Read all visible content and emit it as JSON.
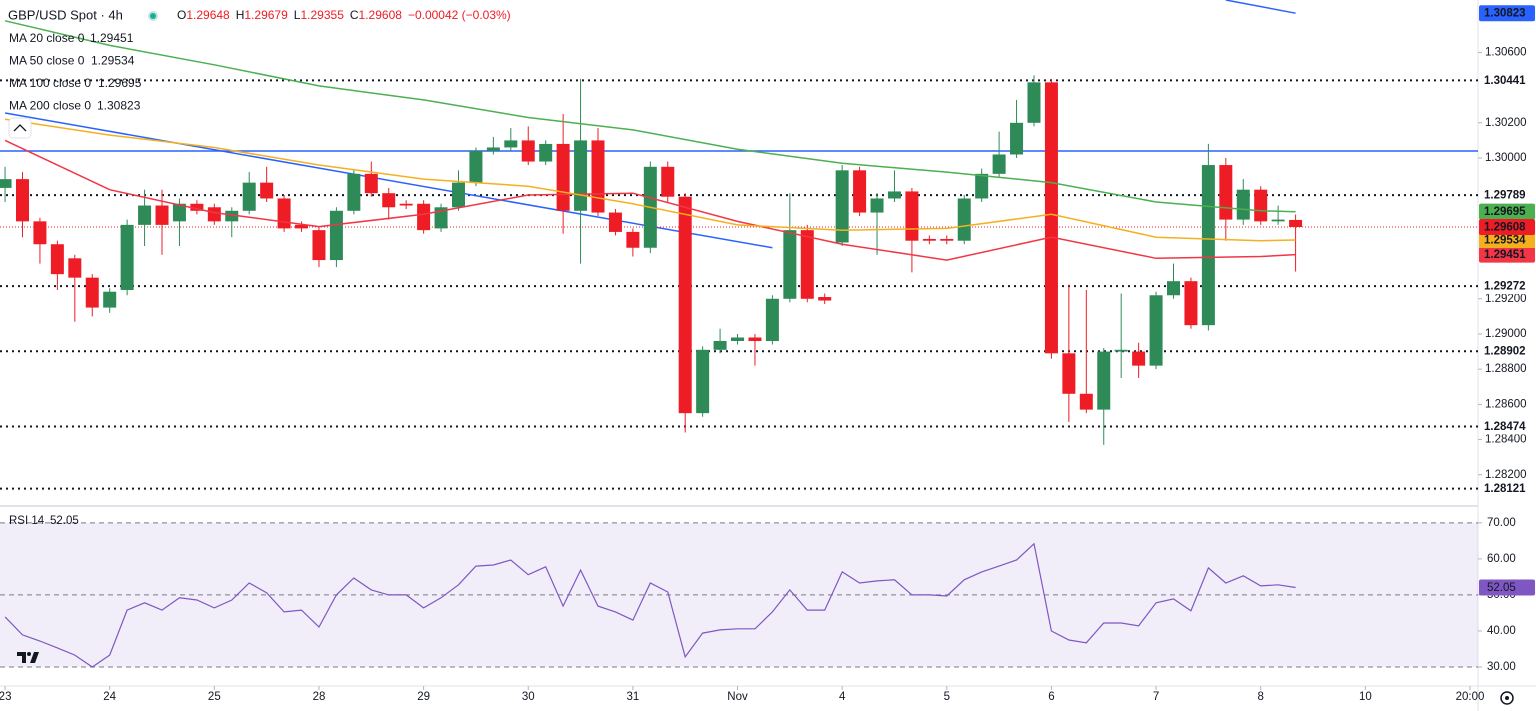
{
  "chart_data": {
    "type": "candlestick",
    "symbol": "GBP/USD Spot · 4h",
    "ohlc": [
      {
        "k": "O",
        "v": "1.29648"
      },
      {
        "k": "H",
        "v": "1.29679"
      },
      {
        "k": "L",
        "v": "1.29355"
      },
      {
        "k": "C",
        "v": "1.29608"
      }
    ],
    "change": "−0.00042 (−0.03%)",
    "up_color": "#2e8b57",
    "down_color": "#ee1c25",
    "xlim": [
      -0.29,
      84.46
    ],
    "xticks": [
      {
        "value": 0,
        "label": "23"
      },
      {
        "value": 6,
        "label": "24"
      },
      {
        "value": 12,
        "label": "25"
      },
      {
        "value": 18,
        "label": "28"
      },
      {
        "value": 24,
        "label": "29"
      },
      {
        "value": 30,
        "label": "30"
      },
      {
        "value": 36,
        "label": "31"
      },
      {
        "value": 42,
        "label": "Nov"
      },
      {
        "value": 48,
        "label": "4"
      },
      {
        "value": 54,
        "label": "5"
      },
      {
        "value": 60,
        "label": "6"
      },
      {
        "value": 66,
        "label": "7"
      },
      {
        "value": 72,
        "label": "8"
      },
      {
        "value": 78,
        "label": "10"
      },
      {
        "value": 84,
        "label": "20:00"
      }
    ],
    "ylim": [
      1.28028,
      1.30898
    ],
    "yticks": [
      {
        "value": 1.306,
        "label": "1.30600"
      },
      {
        "value": 1.302,
        "label": "1.30200"
      },
      {
        "value": 1.3,
        "label": "1.30000"
      },
      {
        "value": 1.292,
        "label": "1.29200"
      },
      {
        "value": 1.29,
        "label": "1.29000"
      },
      {
        "value": 1.288,
        "label": "1.28800"
      },
      {
        "value": 1.286,
        "label": "1.28600"
      },
      {
        "value": 1.284,
        "label": "1.28400"
      },
      {
        "value": 1.282,
        "label": "1.28200"
      }
    ],
    "open": [
      1.2983,
      1.2988,
      1.2964,
      1.2951,
      1.2943,
      1.2932,
      1.2915,
      1.2925,
      1.2962,
      1.2973,
      1.2964,
      1.2974,
      1.2972,
      1.2964,
      1.297,
      1.2986,
      1.2977,
      1.2962,
      1.2959,
      1.2942,
      1.297,
      1.2991,
      1.298,
      1.2974,
      1.2974,
      1.296,
      1.2972,
      1.2986,
      1.3004,
      1.3006,
      1.301,
      1.2998,
      1.3008,
      1.297,
      1.301,
      1.2969,
      1.2958,
      1.2949,
      1.2995,
      1.2978,
      1.2855,
      1.2891,
      1.2896,
      1.2898,
      1.2896,
      1.292,
      1.2959,
      1.2921,
      1.2952,
      1.2993,
      1.2969,
      1.2977,
      1.2981,
      1.2954,
      1.2954,
      1.2953,
      1.2977,
      1.2991,
      1.3002,
      1.302,
      1.3043,
      1.2889,
      1.2866,
      1.2857,
      1.289,
      1.289,
      1.2882,
      1.2922,
      1.293,
      1.2905,
      1.2996,
      1.2965,
      1.2982,
      1.2964,
      1.29648
    ],
    "high": [
      1.2995,
      1.2992,
      1.2966,
      1.2953,
      1.2945,
      1.2934,
      1.2926,
      1.2965,
      1.2982,
      1.2982,
      1.2977,
      1.2976,
      1.2974,
      1.2972,
      1.2992,
      1.2995,
      1.2979,
      1.2964,
      1.2961,
      1.2972,
      1.2993,
      1.2998,
      1.2983,
      1.2976,
      1.2976,
      1.2974,
      1.2993,
      1.3006,
      1.3012,
      1.3017,
      1.3018,
      1.301,
      1.3025,
      1.3045,
      1.3017,
      1.2971,
      1.296,
      1.2998,
      1.2998,
      1.298,
      1.2893,
      1.2903,
      1.29,
      1.29,
      1.2922,
      1.298,
      1.2962,
      1.2923,
      1.2996,
      1.2995,
      1.298,
      1.2993,
      1.2983,
      1.2956,
      1.2956,
      1.2979,
      1.2994,
      1.3015,
      1.3033,
      1.3047,
      1.3045,
      1.2928,
      1.2925,
      1.2892,
      1.2923,
      1.2895,
      1.2924,
      1.294,
      1.2932,
      1.3008,
      1.3,
      1.2988,
      1.2984,
      1.2973,
      1.29679
    ],
    "low": [
      1.2975,
      1.2955,
      1.294,
      1.2925,
      1.2907,
      1.291,
      1.2912,
      1.2922,
      1.295,
      1.2945,
      1.295,
      1.2968,
      1.2962,
      1.2955,
      1.2968,
      1.2975,
      1.2958,
      1.2958,
      1.2938,
      1.2938,
      1.2968,
      1.2978,
      1.2965,
      1.2971,
      1.2957,
      1.2958,
      1.297,
      1.2984,
      1.3002,
      1.3004,
      1.2996,
      1.2996,
      1.2957,
      1.294,
      1.2967,
      1.2956,
      1.2944,
      1.2946,
      1.2975,
      1.2844,
      1.2853,
      1.2889,
      1.2894,
      1.2882,
      1.2894,
      1.2918,
      1.2918,
      1.2917,
      1.295,
      1.2967,
      1.2945,
      1.2975,
      1.2935,
      1.2951,
      1.2951,
      1.2951,
      1.2975,
      1.2989,
      1.3,
      1.3018,
      1.2886,
      1.285,
      1.2855,
      1.2837,
      1.2875,
      1.2875,
      1.288,
      1.292,
      1.2903,
      1.2902,
      1.2953,
      1.2962,
      1.2962,
      1.2962,
      1.29355
    ],
    "close": [
      1.2988,
      1.2964,
      1.2951,
      1.2934,
      1.2932,
      1.2915,
      1.2924,
      1.2962,
      1.2973,
      1.2962,
      1.2974,
      1.297,
      1.2964,
      1.297,
      1.2986,
      1.2977,
      1.296,
      1.296,
      1.2942,
      1.297,
      1.2991,
      1.298,
      1.2972,
      1.2973,
      1.2959,
      1.2972,
      1.2986,
      1.3004,
      1.3006,
      1.301,
      1.2998,
      1.3008,
      1.297,
      1.301,
      1.2969,
      1.2958,
      1.2949,
      1.2995,
      1.2978,
      1.2855,
      1.2891,
      1.2896,
      1.2898,
      1.2896,
      1.292,
      1.2959,
      1.292,
      1.2919,
      1.2993,
      1.2969,
      1.2977,
      1.2981,
      1.2953,
      1.2953,
      1.2953,
      1.2977,
      1.2991,
      1.3002,
      1.302,
      1.3043,
      1.2889,
      1.2866,
      1.2857,
      1.289,
      1.2891,
      1.2882,
      1.2922,
      1.293,
      1.2905,
      1.2996,
      1.2965,
      1.2982,
      1.2964,
      1.2965,
      1.29608
    ],
    "series": [
      {
        "name": "MA 20 close 0",
        "color": "#f23645",
        "x": [
          0,
          6,
          12,
          18,
          24,
          30,
          36,
          42,
          48,
          54,
          60,
          66,
          72,
          74
        ],
        "values": [
          1.301,
          1.2982,
          1.2969,
          1.2961,
          1.2968,
          1.2979,
          1.298,
          1.2964,
          1.2951,
          1.2942,
          1.2955,
          1.2943,
          1.2944,
          1.29451
        ]
      },
      {
        "name": "MA 50 close 0",
        "color": "#f5b01f",
        "x": [
          0,
          6,
          12,
          18,
          24,
          30,
          36,
          42,
          48,
          54,
          60,
          66,
          72,
          74
        ],
        "values": [
          1.3022,
          1.3013,
          1.3006,
          1.2996,
          1.2988,
          1.2984,
          1.2974,
          1.2962,
          1.2959,
          1.296,
          1.2968,
          1.2955,
          1.2953,
          1.29534
        ]
      },
      {
        "name": "MA 100 close 0",
        "color": "#4caf50",
        "x": [
          0,
          6,
          12,
          18,
          24,
          30,
          36,
          42,
          48,
          54,
          60,
          66,
          72,
          74
        ],
        "values": [
          1.3078,
          1.3064,
          1.3053,
          1.3041,
          1.3033,
          1.3023,
          1.3016,
          1.3005,
          1.2997,
          1.2992,
          1.2986,
          1.2975,
          1.297,
          1.29695
        ]
      },
      {
        "name": "MA 200 close 0",
        "color": "#2962ff",
        "x": [
          70,
          74
        ],
        "values": [
          1.30898,
          1.30823
        ]
      }
    ],
    "trendline": {
      "color": "#2962ff",
      "x": [
        0,
        44
      ],
      "values": [
        1.30256,
        1.2949
      ]
    },
    "hline": {
      "color": "#2962ff",
      "value": 1.3004
    },
    "levels": [
      1.30441,
      1.29789,
      1.29272,
      1.28902,
      1.28474,
      1.28121
    ],
    "rsi": {
      "name": "RSI 14",
      "color": "#7e57c2",
      "ylim": [
        25,
        74.4
      ],
      "yticks": [
        {
          "value": 70,
          "label": "70.00"
        },
        {
          "value": 60,
          "label": "60.00"
        },
        {
          "value": 50,
          "label": "50.00"
        },
        {
          "value": 40,
          "label": "40.00"
        },
        {
          "value": 30,
          "label": "30.00"
        }
      ],
      "band": [
        30,
        70
      ],
      "levels": [
        70,
        50,
        30
      ],
      "values": [
        43.9,
        38.9,
        37.2,
        35.3,
        33.3,
        30,
        33.3,
        45.8,
        47.8,
        45.8,
        49.2,
        48.6,
        46.4,
        48.6,
        53.3,
        50.6,
        45.3,
        45.8,
        41.1,
        50,
        54.7,
        51.4,
        50,
        50,
        46.4,
        49.2,
        52.8,
        58,
        58.3,
        59.7,
        55.6,
        57.8,
        46.9,
        56.9,
        46.9,
        45.3,
        43,
        53.3,
        50.8,
        32.8,
        39.4,
        40.3,
        40.6,
        40.6,
        45.3,
        51.4,
        45.8,
        45.8,
        56.4,
        53.3,
        53.9,
        54.2,
        50,
        50,
        49.7,
        54.2,
        56.4,
        58,
        59.7,
        64.2,
        40,
        37.5,
        36.7,
        42.2,
        42.2,
        41.4,
        47.8,
        48.9,
        45.6,
        57.5,
        53.3,
        55.3,
        52.5,
        52.8,
        52.05
      ]
    }
  }
}
